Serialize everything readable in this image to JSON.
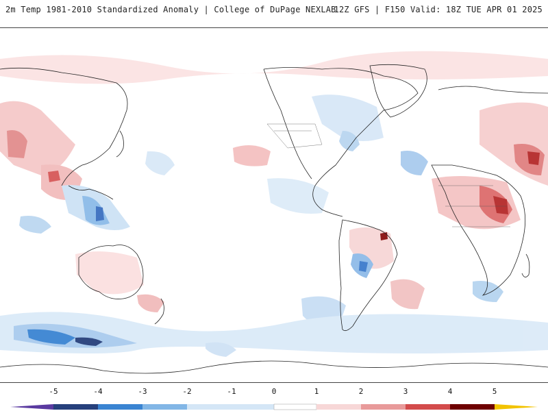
{
  "header": {
    "left_title": "2m Temp 1981-2010 Standardized Anomaly | College of DuPage NEXLAB",
    "right_title": "12Z GFS | F150 Valid: 18Z TUE APR 01 2025"
  },
  "colorbar": {
    "ticks": [
      "-5",
      "-4",
      "-3",
      "-2",
      "-1",
      "0",
      "1",
      "2",
      "3",
      "4",
      "5"
    ],
    "colors": {
      "minus5": "#5a3aa0",
      "minus4": "#26407c",
      "minus3": "#3a84d2",
      "minus2": "#82b6e6",
      "minus1": "#d4e6f6",
      "zero": "#ffffff",
      "plus1": "#f7d7d7",
      "plus2": "#e89a9a",
      "plus3": "#d34b4b",
      "plus4": "#a51a1a",
      "plus5": "#6e0000",
      "over": "#f2c300"
    }
  }
}
